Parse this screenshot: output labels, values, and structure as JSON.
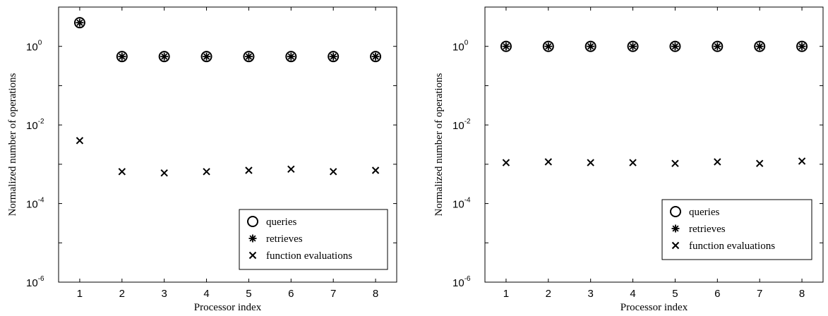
{
  "chart_data": [
    {
      "type": "scatter",
      "title": "",
      "xlabel": "Processor index",
      "ylabel": "Normalized number of operations",
      "xscale": "linear",
      "yscale": "log",
      "xlim": [
        0.5,
        8.5
      ],
      "ylim": [
        1e-06,
        10
      ],
      "xticks": [
        1,
        2,
        3,
        4,
        5,
        6,
        7,
        8
      ],
      "yticks": [
        {
          "value": 1,
          "base": "10",
          "exp": "0"
        },
        {
          "value": 0.01,
          "base": "10",
          "exp": "-2"
        },
        {
          "value": 0.0001,
          "base": "10",
          "exp": "-4"
        },
        {
          "value": 1e-06,
          "base": "10",
          "exp": "-6"
        }
      ],
      "legend_position": "lower-right",
      "grid": false,
      "series": [
        {
          "name": "queries",
          "marker": "circle",
          "x": [
            1,
            2,
            3,
            4,
            5,
            6,
            7,
            8
          ],
          "values": [
            4,
            0.55,
            0.55,
            0.55,
            0.55,
            0.55,
            0.55,
            0.55
          ]
        },
        {
          "name": "retrieves",
          "marker": "asterisk",
          "x": [
            1,
            2,
            3,
            4,
            5,
            6,
            7,
            8
          ],
          "values": [
            4,
            0.55,
            0.55,
            0.55,
            0.55,
            0.55,
            0.55,
            0.55
          ]
        },
        {
          "name": "function evaluations",
          "marker": "x",
          "x": [
            1,
            2,
            3,
            4,
            5,
            6,
            7,
            8
          ],
          "values": [
            0.004,
            0.00065,
            0.0006,
            0.00065,
            0.0007,
            0.00075,
            0.00065,
            0.0007
          ]
        }
      ]
    },
    {
      "type": "scatter",
      "title": "",
      "xlabel": "Processor index",
      "ylabel": "Normalized number of operations",
      "xscale": "linear",
      "yscale": "log",
      "xlim": [
        0.5,
        8.5
      ],
      "ylim": [
        1e-06,
        10
      ],
      "xticks": [
        1,
        2,
        3,
        4,
        5,
        6,
        7,
        8
      ],
      "yticks": [
        {
          "value": 1,
          "base": "10",
          "exp": "0"
        },
        {
          "value": 0.01,
          "base": "10",
          "exp": "-2"
        },
        {
          "value": 0.0001,
          "base": "10",
          "exp": "-4"
        },
        {
          "value": 1e-06,
          "base": "10",
          "exp": "-6"
        }
      ],
      "legend_position": "lower-right",
      "grid": false,
      "series": [
        {
          "name": "queries",
          "marker": "circle",
          "x": [
            1,
            2,
            3,
            4,
            5,
            6,
            7,
            8
          ],
          "values": [
            1,
            1,
            1,
            1,
            1,
            1,
            1,
            1
          ]
        },
        {
          "name": "retrieves",
          "marker": "asterisk",
          "x": [
            1,
            2,
            3,
            4,
            5,
            6,
            7,
            8
          ],
          "values": [
            1,
            1,
            1,
            1,
            1,
            1,
            1,
            1
          ]
        },
        {
          "name": "function evaluations",
          "marker": "x",
          "x": [
            1,
            2,
            3,
            4,
            5,
            6,
            7,
            8
          ],
          "values": [
            0.0011,
            0.00115,
            0.0011,
            0.0011,
            0.00105,
            0.00115,
            0.00105,
            0.0012
          ]
        }
      ]
    }
  ]
}
